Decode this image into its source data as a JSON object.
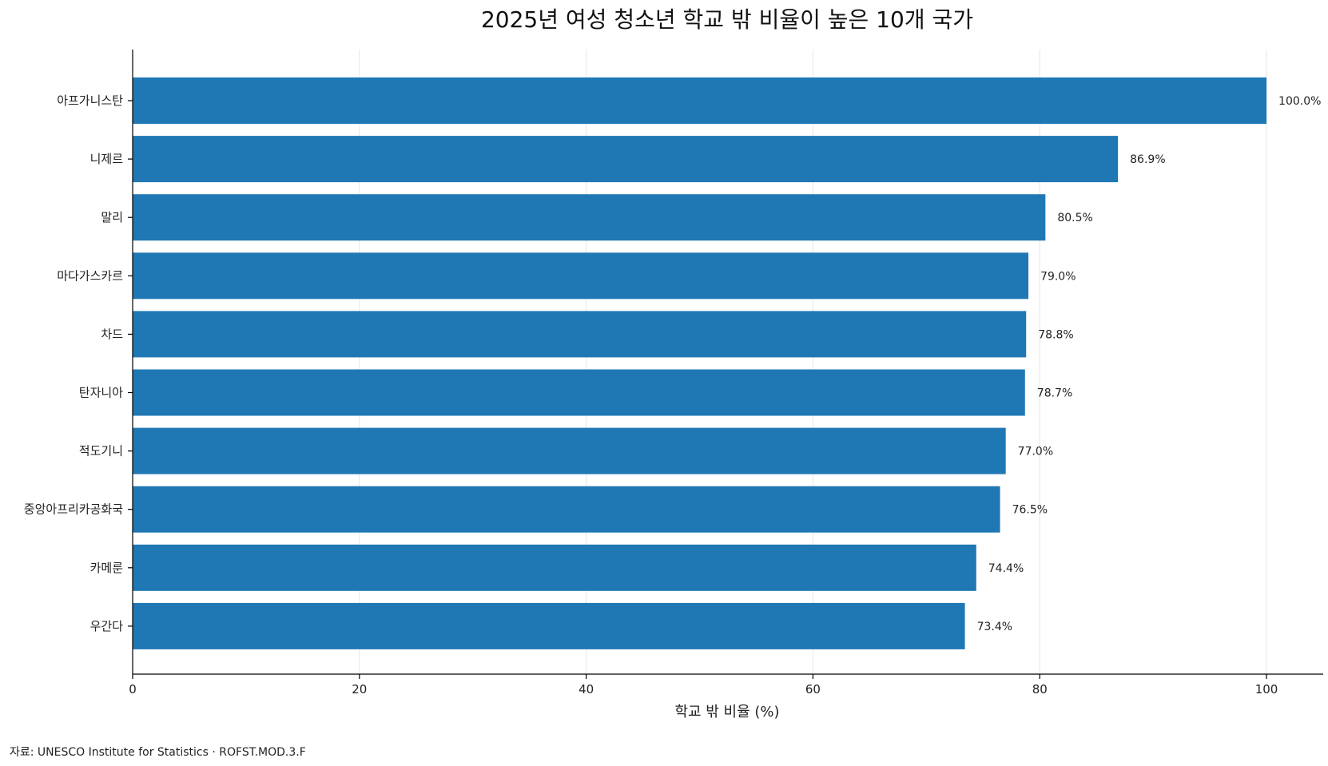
{
  "chart_data": {
    "type": "bar",
    "orientation": "horizontal",
    "title": "2025년 여성 청소년 학교 밖 비율이 높은 10개 국가",
    "xlabel": "학교 밖 비율 (%)",
    "ylabel": "",
    "xlim": [
      0,
      105
    ],
    "xticks": [
      0,
      20,
      40,
      60,
      80,
      100
    ],
    "grid": true,
    "categories": [
      "아프가니스탄",
      "니제르",
      "말리",
      "마다가스카르",
      "차드",
      "탄자니아",
      "적도기니",
      "중앙아프리카공화국",
      "카메룬",
      "우간다"
    ],
    "values": [
      100.0,
      86.9,
      80.5,
      79.0,
      78.8,
      78.7,
      77.0,
      76.5,
      74.4,
      73.4
    ],
    "value_labels": [
      "100.0%",
      "86.9%",
      "80.5%",
      "79.0%",
      "78.8%",
      "78.7%",
      "77.0%",
      "76.5%",
      "74.4%",
      "73.4%"
    ],
    "bar_color": "#1f77b4",
    "source": "자료: UNESCO Institute for Statistics · ROFST.MOD.3.F"
  }
}
